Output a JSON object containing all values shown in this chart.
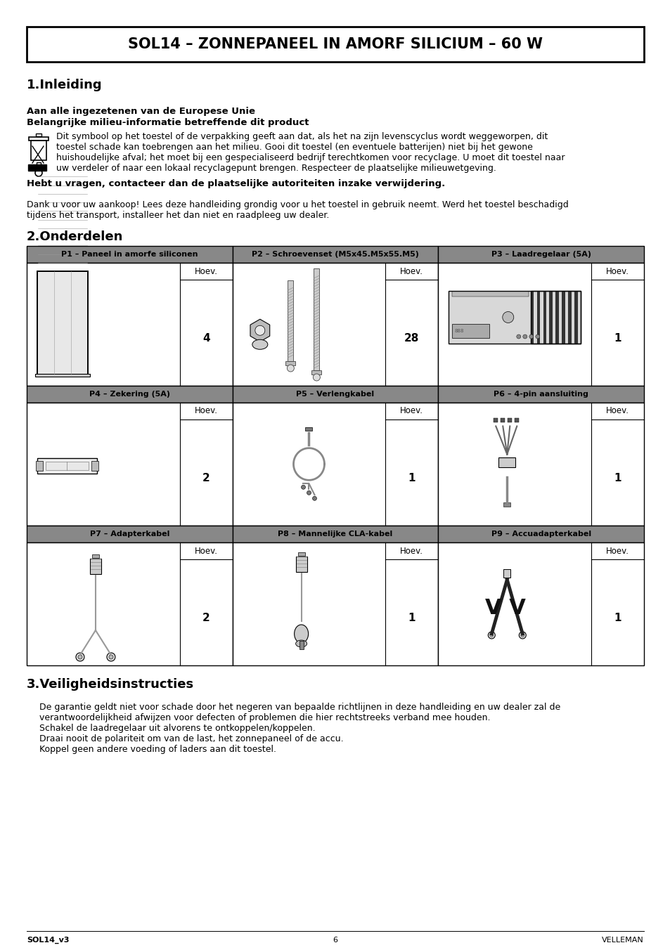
{
  "title": "SOL14 – ZONNEPANEEL IN AMORF SILICIUM – 60 W",
  "section1_title": "1.Inleiding",
  "eu_bold1": "Aan alle ingezetenen van de Europese Unie",
  "eu_bold2": "Belangrijke milieu-informatie betreffende dit product",
  "eu_text_lines": [
    "Dit symbool op het toestel of de verpakking geeft aan dat, als het na zijn levenscyclus wordt weggeworpen, dit",
    "toestel schade kan toebrengen aan het milieu. Gooi dit toestel (en eventuele batterijen) niet bij het gewone",
    "huishoudelijke afval; het moet bij een gespecialiseerd bedrijf terechtkomen voor recyclage. U moet dit toestel naar",
    "uw verdeler of naar een lokaal recyclagepunt brengen. Respecteer de plaatselijke milieuwetgeving."
  ],
  "eu_bold3": "Hebt u vragen, contacteer dan de plaatselijke autoriteiten inzake verwijdering.",
  "intro_lines": [
    "Dank u voor uw aankoop! Lees deze handleiding grondig voor u het toestel in gebruik neemt. Werd het toestel beschadigd",
    "tijdens het transport, installeer het dan niet en raadpleeg uw dealer."
  ],
  "section2_title": "2.Onderdelen",
  "headers_row1": [
    "P1 – Paneel in amorfe siliconen",
    "P2 – Schroevenset (M5x45.M5x55.M5)",
    "P3 – Laadregelaar (5A)"
  ],
  "headers_row2": [
    "P4 – Zekering (5A)",
    "P5 – Verlengkabel",
    "P6 – 4-pin aansluiting"
  ],
  "headers_row3": [
    "P7 – Adapterkabel",
    "P8 – Mannelijke CLA-kabel",
    "P9 – Accuadapterkabel"
  ],
  "qtys_row1": [
    "4",
    "28",
    "1"
  ],
  "qtys_row2": [
    "2",
    "1",
    "1"
  ],
  "qtys_row3": [
    "2",
    "1",
    "1"
  ],
  "section3_title": "3.Veiligheidsinstructies",
  "safety_lines": [
    "De garantie geldt niet voor schade door het negeren van bepaalde richtlijnen in deze handleiding en uw dealer zal de",
    "verantwoordelijkheid afwijzen voor defecten of problemen die hier rechtstreeks verband mee houden.",
    "Schakel de laadregelaar uit alvorens te ontkoppelen/koppelen.",
    "Draai nooit de polariteit om van de last, het zonnepaneel of de accu.",
    "Koppel geen andere voeding of laders aan dit toestel."
  ],
  "footer_left": "SOL14_v3",
  "footer_center": "6",
  "footer_right": "VELLEMAN"
}
